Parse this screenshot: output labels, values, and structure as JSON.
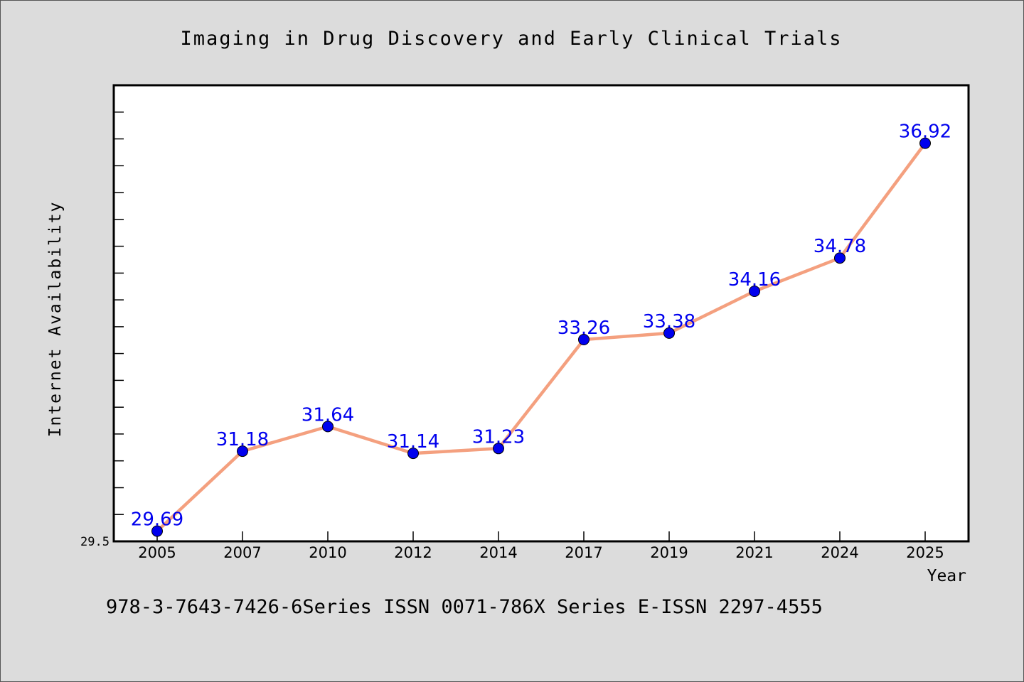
{
  "chart_data": {
    "type": "line",
    "title": "Imaging in Drug Discovery and Early Clinical Trials",
    "xlabel": "Year",
    "ylabel": "Internet Availability",
    "categories": [
      "2005",
      "2007",
      "2010",
      "2012",
      "2014",
      "2017",
      "2019",
      "2021",
      "2024",
      "2025"
    ],
    "series": [
      {
        "values": [
          29.69,
          31.18,
          31.64,
          31.14,
          31.23,
          33.26,
          33.38,
          34.16,
          34.78,
          36.92
        ],
        "labels": [
          "29.69",
          "31.18",
          "31.64",
          "31.14",
          "31.23",
          "33.26",
          "33.38",
          "34.16",
          "34.78",
          "36.92"
        ]
      }
    ],
    "ylim": [
      29.5,
      38.0
    ],
    "ytick_labels": [
      "29.5"
    ],
    "grid": false,
    "legend": "none",
    "colors": {
      "line": "#f4a07f",
      "marker": "#0000ee",
      "label": "#0000ee",
      "plot_bg": "#ffffff",
      "page_bg": "#dcdcdc"
    }
  },
  "footer": "978-3-7643-7426-6Series ISSN 0071-786X Series E-ISSN 2297-4555"
}
